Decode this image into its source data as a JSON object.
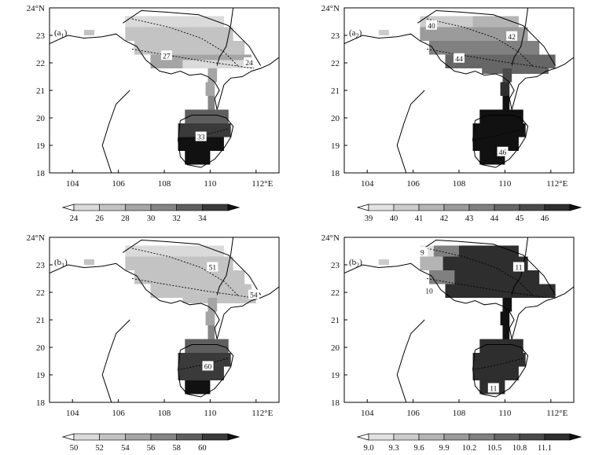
{
  "panels": [
    {
      "id": "a1",
      "label_letter": "a",
      "label_sub": "1",
      "contour_labels": [
        "27",
        "24",
        "33"
      ],
      "colorbar": {
        "ticks": [
          "24",
          "26",
          "28",
          "30",
          "32",
          "34"
        ],
        "colors": [
          "#ffffff",
          "#dadada",
          "#c3c3c3",
          "#a5a5a5",
          "#858585",
          "#5e5e5e",
          "#3a3a3a",
          "#111111"
        ]
      }
    },
    {
      "id": "a2",
      "label_letter": "a",
      "label_sub": "2",
      "contour_labels": [
        "40",
        "42",
        "44",
        "46"
      ],
      "colorbar": {
        "ticks": [
          "39",
          "40",
          "41",
          "42",
          "43",
          "44",
          "45",
          "46"
        ],
        "colors": [
          "#ffffff",
          "#e2e2e2",
          "#cccccc",
          "#b4b4b4",
          "#9b9b9b",
          "#808080",
          "#666666",
          "#4a4a4a",
          "#2e2e2e",
          "#111111"
        ]
      }
    },
    {
      "id": "b1",
      "label_letter": "b",
      "label_sub": "1",
      "contour_labels": [
        "51",
        "54",
        "60"
      ],
      "colorbar": {
        "ticks": [
          "50",
          "52",
          "54",
          "56",
          "58",
          "60"
        ],
        "colors": [
          "#ffffff",
          "#dadada",
          "#c3c3c3",
          "#a5a5a5",
          "#858585",
          "#5e5e5e",
          "#3a3a3a",
          "#111111"
        ]
      }
    },
    {
      "id": "b2",
      "label_letter": "b",
      "label_sub": "2",
      "contour_labels": [
        "9",
        "10",
        "11",
        "11"
      ],
      "colorbar": {
        "ticks": [
          "9.0",
          "9.3",
          "9.6",
          "9.9",
          "10.2",
          "10.5",
          "10.8",
          "11.1"
        ],
        "colors": [
          "#ffffff",
          "#e2e2e2",
          "#cccccc",
          "#b4b4b4",
          "#9b9b9b",
          "#808080",
          "#666666",
          "#4a4a4a",
          "#2e2e2e",
          "#111111"
        ]
      }
    }
  ],
  "axes": {
    "x_ticks": [
      "104",
      "106",
      "108",
      "110",
      "112°E"
    ],
    "y_ticks": [
      "24°N",
      "23",
      "22",
      "21",
      "20",
      "19",
      "18"
    ]
  }
}
